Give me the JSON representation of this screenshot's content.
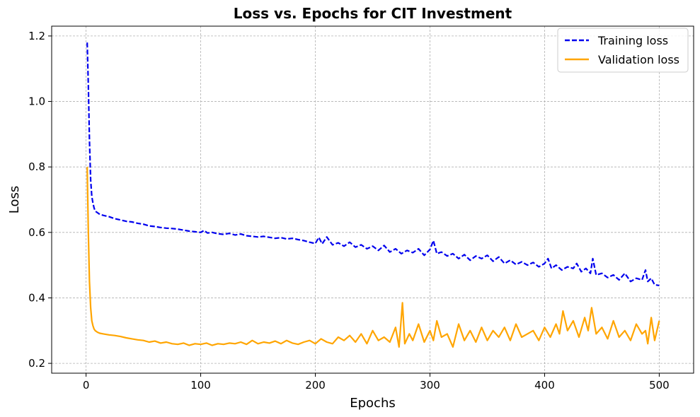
{
  "chart_data": {
    "type": "line",
    "title": "Loss vs. Epochs for CIT Investment",
    "xlabel": "Epochs",
    "ylabel": "Loss",
    "xlim": [
      -30,
      530
    ],
    "ylim": [
      0.17,
      1.23
    ],
    "xticks": [
      0,
      100,
      200,
      300,
      400,
      500
    ],
    "yticks": [
      0.2,
      0.4,
      0.6,
      0.8,
      1.0,
      1.2
    ],
    "ytick_labels": [
      "0.2",
      "0.4",
      "0.6",
      "0.8",
      "1.0",
      "1.2"
    ],
    "grid": true,
    "legend_position": "top-right",
    "series": [
      {
        "name": "Training loss",
        "color": "#0000ee",
        "style": "dashed",
        "x": [
          1,
          2,
          3,
          4,
          5,
          6,
          7,
          8,
          10,
          12,
          15,
          20,
          25,
          30,
          35,
          40,
          45,
          50,
          55,
          60,
          65,
          70,
          75,
          80,
          85,
          90,
          95,
          100,
          103,
          106,
          110,
          115,
          120,
          125,
          130,
          135,
          140,
          145,
          150,
          155,
          160,
          165,
          170,
          175,
          180,
          185,
          190,
          195,
          200,
          203,
          206,
          210,
          215,
          220,
          225,
          230,
          235,
          240,
          245,
          250,
          255,
          260,
          265,
          270,
          275,
          280,
          285,
          290,
          295,
          300,
          303,
          306,
          310,
          315,
          320,
          325,
          330,
          335,
          340,
          345,
          350,
          355,
          360,
          365,
          370,
          375,
          380,
          385,
          390,
          395,
          400,
          403,
          406,
          410,
          415,
          420,
          425,
          428,
          432,
          436,
          440,
          442,
          445,
          450,
          455,
          460,
          465,
          470,
          475,
          480,
          485,
          488,
          490,
          493,
          496,
          500
        ],
        "y": [
          1.18,
          1.05,
          0.88,
          0.76,
          0.71,
          0.69,
          0.675,
          0.665,
          0.66,
          0.655,
          0.652,
          0.648,
          0.642,
          0.638,
          0.634,
          0.632,
          0.628,
          0.625,
          0.62,
          0.618,
          0.615,
          0.613,
          0.612,
          0.61,
          0.607,
          0.604,
          0.602,
          0.6,
          0.606,
          0.598,
          0.6,
          0.596,
          0.594,
          0.597,
          0.592,
          0.595,
          0.59,
          0.588,
          0.586,
          0.588,
          0.585,
          0.582,
          0.584,
          0.58,
          0.582,
          0.578,
          0.575,
          0.57,
          0.566,
          0.585,
          0.565,
          0.586,
          0.562,
          0.568,
          0.558,
          0.57,
          0.555,
          0.562,
          0.55,
          0.558,
          0.545,
          0.56,
          0.54,
          0.55,
          0.535,
          0.545,
          0.538,
          0.55,
          0.53,
          0.548,
          0.575,
          0.535,
          0.54,
          0.528,
          0.535,
          0.52,
          0.532,
          0.515,
          0.528,
          0.52,
          0.53,
          0.512,
          0.525,
          0.505,
          0.515,
          0.502,
          0.51,
          0.5,
          0.508,
          0.495,
          0.505,
          0.52,
          0.49,
          0.5,
          0.485,
          0.495,
          0.49,
          0.505,
          0.48,
          0.49,
          0.475,
          0.52,
          0.47,
          0.475,
          0.462,
          0.47,
          0.455,
          0.475,
          0.45,
          0.46,
          0.455,
          0.485,
          0.45,
          0.46,
          0.44,
          0.438
        ]
      },
      {
        "name": "Validation loss",
        "color": "#ffa500",
        "style": "solid",
        "x": [
          1,
          2,
          3,
          4,
          5,
          6,
          7,
          8,
          10,
          12,
          15,
          20,
          25,
          30,
          35,
          40,
          45,
          50,
          55,
          60,
          65,
          70,
          75,
          80,
          85,
          90,
          95,
          100,
          105,
          110,
          115,
          120,
          125,
          130,
          135,
          140,
          145,
          150,
          155,
          160,
          165,
          170,
          175,
          180,
          185,
          190,
          195,
          200,
          205,
          210,
          215,
          220,
          225,
          230,
          235,
          240,
          245,
          250,
          255,
          260,
          265,
          270,
          273,
          276,
          278,
          282,
          285,
          290,
          295,
          300,
          303,
          306,
          310,
          315,
          320,
          325,
          330,
          335,
          340,
          345,
          350,
          355,
          360,
          365,
          370,
          375,
          380,
          385,
          390,
          395,
          400,
          405,
          410,
          413,
          416,
          420,
          425,
          430,
          435,
          438,
          441,
          445,
          450,
          455,
          460,
          465,
          470,
          475,
          480,
          485,
          488,
          490,
          493,
          496,
          500
        ],
        "y": [
          0.8,
          0.6,
          0.45,
          0.37,
          0.33,
          0.315,
          0.305,
          0.3,
          0.295,
          0.292,
          0.29,
          0.287,
          0.285,
          0.282,
          0.278,
          0.275,
          0.272,
          0.27,
          0.265,
          0.268,
          0.262,
          0.265,
          0.26,
          0.258,
          0.262,
          0.255,
          0.26,
          0.258,
          0.262,
          0.255,
          0.26,
          0.258,
          0.262,
          0.26,
          0.265,
          0.258,
          0.27,
          0.26,
          0.265,
          0.262,
          0.268,
          0.26,
          0.27,
          0.262,
          0.258,
          0.265,
          0.27,
          0.26,
          0.275,
          0.265,
          0.26,
          0.28,
          0.27,
          0.285,
          0.265,
          0.29,
          0.26,
          0.3,
          0.27,
          0.28,
          0.265,
          0.31,
          0.25,
          0.385,
          0.26,
          0.29,
          0.27,
          0.32,
          0.265,
          0.3,
          0.27,
          0.33,
          0.28,
          0.29,
          0.25,
          0.32,
          0.27,
          0.3,
          0.265,
          0.31,
          0.27,
          0.3,
          0.28,
          0.31,
          0.27,
          0.32,
          0.28,
          0.29,
          0.3,
          0.27,
          0.31,
          0.28,
          0.32,
          0.29,
          0.36,
          0.3,
          0.33,
          0.28,
          0.34,
          0.3,
          0.37,
          0.29,
          0.31,
          0.275,
          0.33,
          0.28,
          0.3,
          0.27,
          0.32,
          0.29,
          0.3,
          0.26,
          0.34,
          0.27,
          0.33
        ]
      }
    ]
  }
}
